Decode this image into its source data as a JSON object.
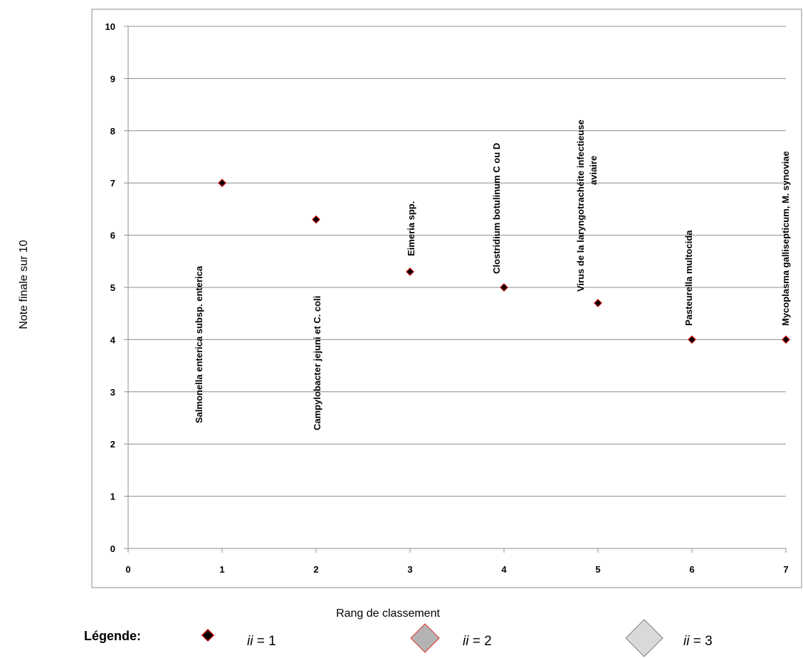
{
  "chart_data": {
    "type": "scatter",
    "xlabel": "Rang de classement",
    "ylabel": "Note finale sur 10",
    "xlim": [
      0,
      7
    ],
    "ylim": [
      0,
      10
    ],
    "x_ticks": [
      "0",
      "1",
      "2",
      "3",
      "4",
      "5",
      "6",
      "7"
    ],
    "y_ticks": [
      "0",
      "1",
      "2",
      "3",
      "4",
      "5",
      "6",
      "7",
      "8",
      "9",
      "10"
    ],
    "grid": "horizontal",
    "points": [
      {
        "x": 1,
        "y": 7.0,
        "label": [
          "Salmonella enterica subsp. enterica"
        ]
      },
      {
        "x": 2,
        "y": 6.3,
        "label": [
          "Campylobacter jejuni et C. coli"
        ]
      },
      {
        "x": 3,
        "y": 5.3,
        "label": [
          "Eimeria spp."
        ]
      },
      {
        "x": 4,
        "y": 5.0,
        "label": [
          "Clostridium botulinum C ou D"
        ]
      },
      {
        "x": 5,
        "y": 4.7,
        "label": [
          "Virus de la laryngotrachéite infectieuse",
          "aviaire"
        ]
      },
      {
        "x": 6,
        "y": 4.0,
        "label": [
          "Pasteurella multocida"
        ]
      },
      {
        "x": 7,
        "y": 4.0,
        "label": [
          "Mycoplasma gallisepticum, M. synoviae"
        ]
      }
    ],
    "marker_color": "#000000",
    "marker_edge_color": "#c00000"
  },
  "legend": {
    "title": "Légende:",
    "items": [
      {
        "var": "ii",
        "text": " = 1",
        "fill": "#000000",
        "stroke": "#c00000"
      },
      {
        "var": "ii",
        "text": " = 2",
        "fill": "#b3b3b3",
        "stroke": "#e03030"
      },
      {
        "var": "ii",
        "text": " = 3",
        "fill": "#d9d9d9",
        "stroke": "#808080"
      }
    ]
  }
}
